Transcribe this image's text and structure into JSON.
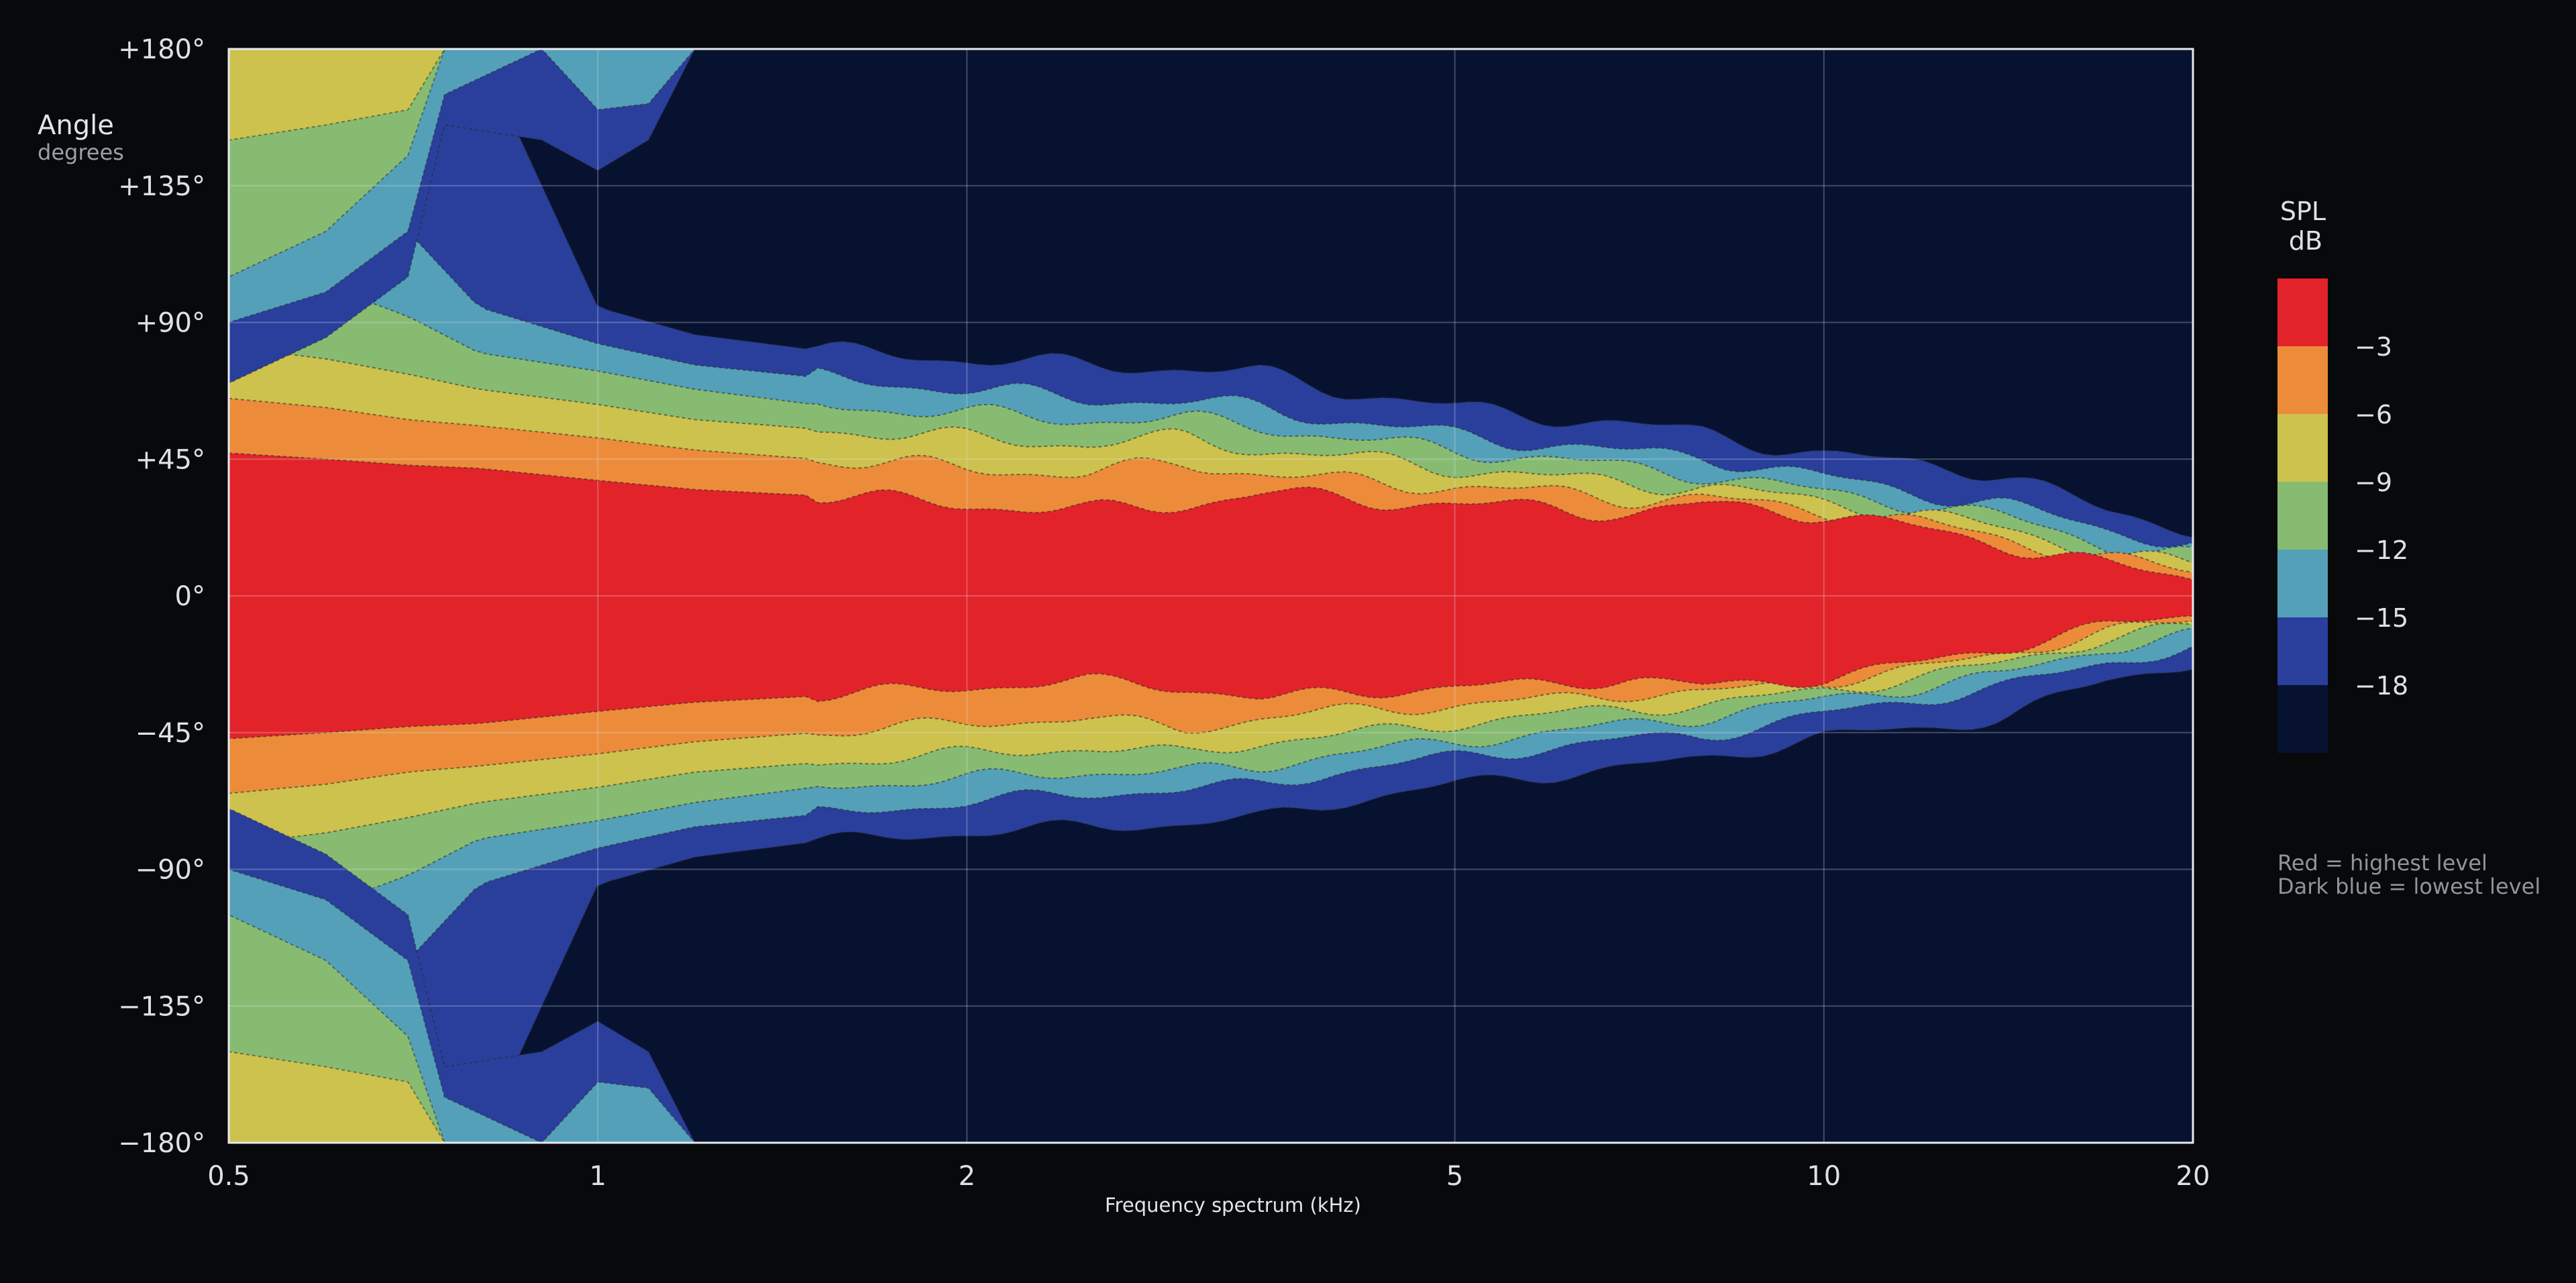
{
  "chart_data": {
    "type": "heatmap",
    "subtype": "directivity contour map",
    "xlabel": "Frequency spectrum (kHz)",
    "ylabel": "Angle",
    "ylabel_unit": "degrees",
    "x_scale": "log",
    "xlim": [
      0.5,
      20
    ],
    "ylim": [
      -180,
      180
    ],
    "x_ticks": [
      0.5,
      1,
      2,
      5,
      10,
      20
    ],
    "x_tick_labels": [
      "0.5",
      "1",
      "2",
      "5",
      "10",
      "20"
    ],
    "y_ticks": [
      180,
      135,
      90,
      45,
      0,
      -45,
      -90,
      -135,
      -180
    ],
    "y_tick_labels": [
      "+180°",
      "+135°",
      "+90°",
      "+45°",
      "0°",
      "−45°",
      "−90°",
      "−135°",
      "−180°"
    ],
    "grid": true,
    "colorbar": {
      "title": "SPL",
      "unit": "dB",
      "placement": "right",
      "levels": [
        {
          "label": "",
          "color": "#e3232a"
        },
        {
          "label": "−3",
          "color": "#ec8c3a"
        },
        {
          "label": "−6",
          "color": "#cdc24d"
        },
        {
          "label": "−9",
          "color": "#88bb72"
        },
        {
          "label": "−12",
          "color": "#54a0b8"
        },
        {
          "label": "−15",
          "color": "#2a3f9c"
        },
        {
          "label": "−18",
          "color": "#061230"
        }
      ]
    },
    "notes": [
      "Red = highest level",
      "Dark blue = lowest level"
    ],
    "contour_half_widths": {
      "description": "Approximate angle (degrees) above/below 0° at which each level boundary lies, sampled at the listed frequencies (kHz)",
      "frequencies": [
        0.5,
        0.6,
        0.7,
        0.8,
        1,
        1.2,
        1.5,
        2,
        2.5,
        3,
        3.5,
        4,
        5,
        6,
        7,
        8,
        10,
        12,
        14,
        17,
        20
      ],
      "-3": [
        47,
        45,
        43,
        42,
        38,
        35,
        33,
        30,
        28,
        30,
        34,
        32,
        30,
        29,
        27,
        30,
        27,
        22,
        17,
        10,
        6
      ],
      "-6": [
        65,
        62,
        58,
        56,
        52,
        48,
        45,
        42,
        40,
        44,
        40,
        38,
        36,
        34,
        32,
        32,
        28,
        24,
        19,
        12,
        8
      ],
      "-9": [
        82,
        78,
        73,
        68,
        63,
        58,
        55,
        52,
        50,
        52,
        48,
        46,
        42,
        39,
        37,
        36,
        31,
        27,
        22,
        14,
        10
      ],
      "-12": [
        110,
        102,
        92,
        80,
        74,
        68,
        63,
        60,
        58,
        58,
        56,
        52,
        48,
        45,
        42,
        40,
        34,
        30,
        26,
        17,
        13
      ],
      "-15": [
        128,
        125,
        120,
        95,
        83,
        76,
        72,
        68,
        65,
        64,
        62,
        58,
        53,
        50,
        47,
        46,
        39,
        34,
        30,
        22,
        17
      ],
      "-18": [
        180,
        180,
        180,
        180,
        95,
        86,
        81,
        78,
        76,
        75,
        73,
        68,
        62,
        59,
        56,
        54,
        46,
        44,
        40,
        28,
        22
      ]
    },
    "rear_lobes": {
      "description": "Approximate rear-lobe levels at ±180° (outer angle band, degrees from ±180°)",
      "frequencies": [
        0.5,
        0.6,
        0.7,
        0.75,
        0.9,
        1.0,
        1.1,
        1.2
      ],
      "-9_band": [
        30,
        25,
        20,
        0,
        0,
        0,
        0,
        0
      ],
      "-12_band": [
        75,
        60,
        35,
        0,
        0,
        0,
        0,
        0
      ],
      "-15_band": [
        90,
        80,
        60,
        15,
        0,
        20,
        18,
        0
      ],
      "-18_band": [
        110,
        95,
        75,
        25,
        30,
        40,
        30,
        0
      ]
    }
  }
}
